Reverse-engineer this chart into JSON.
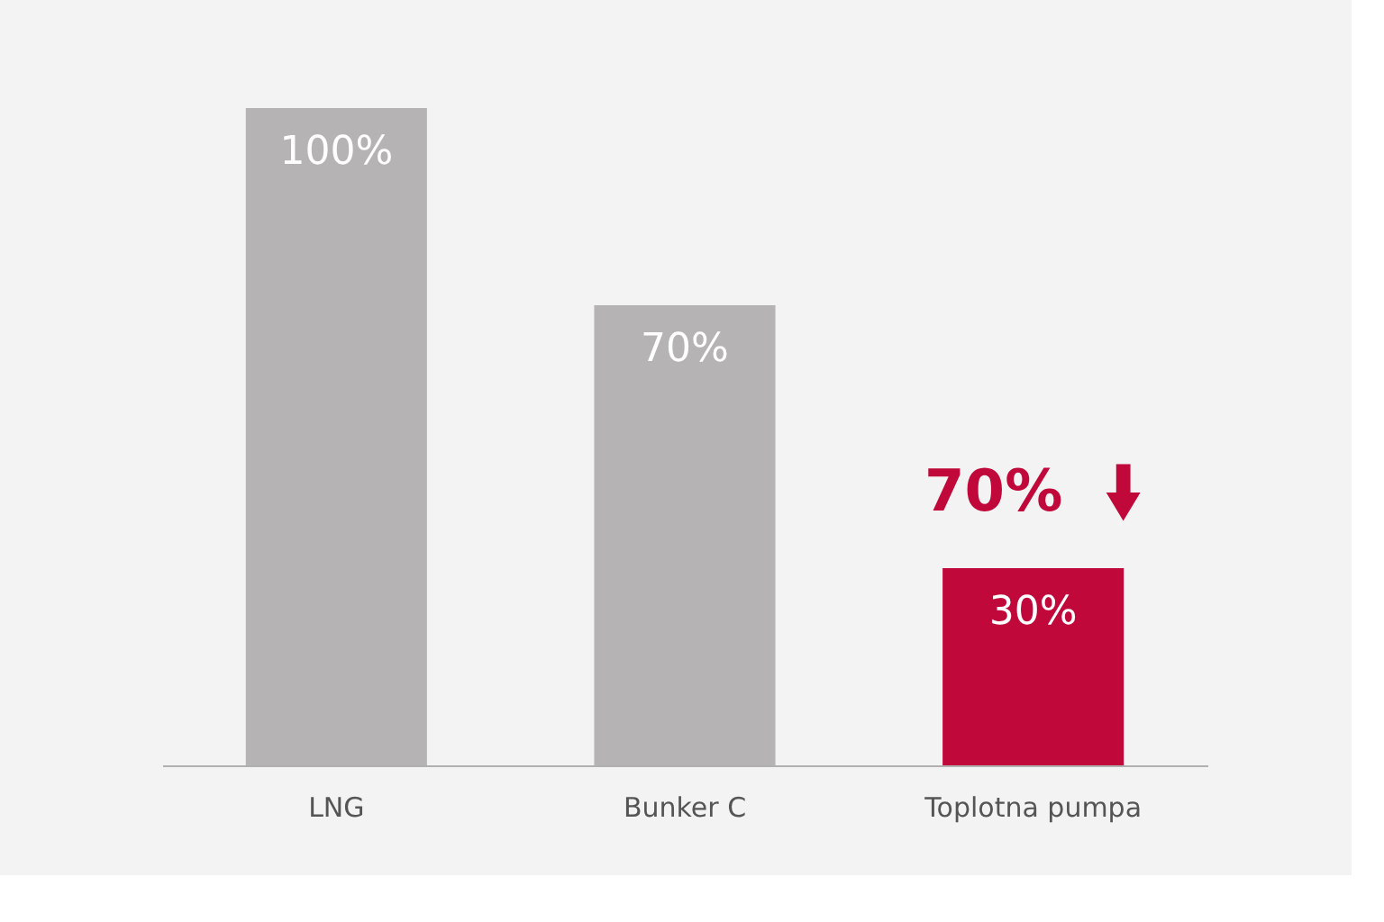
{
  "chart_data": {
    "type": "bar",
    "categories": [
      "LNG",
      "Bunker C",
      "Toplotna pumpa"
    ],
    "values": [
      100,
      70,
      30
    ],
    "colors": [
      "#b5b3b3",
      "#b5b3b3",
      "#c0093a"
    ],
    "value_labels": [
      "100%",
      "70%",
      "30%"
    ],
    "annotations": [
      "70%"
    ]
  }
}
